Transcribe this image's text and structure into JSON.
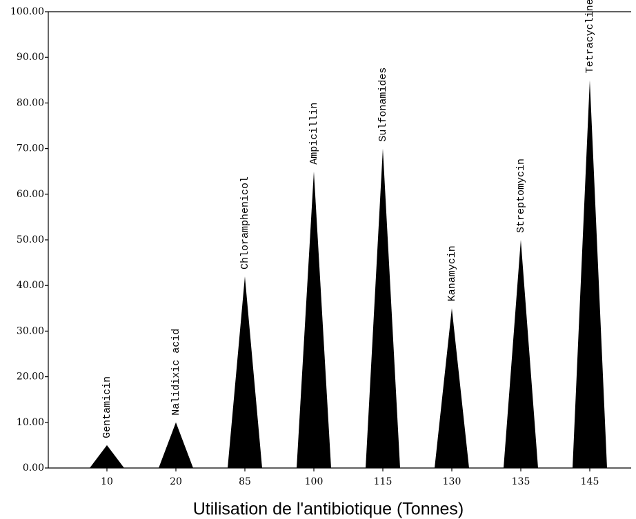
{
  "chart_data": {
    "type": "triangle-bar",
    "xlabel": "Utilisation de l'antibiotique (Tonnes)",
    "categories": [
      "10",
      "20",
      "85",
      "100",
      "115",
      "130",
      "135",
      "145"
    ],
    "labels": [
      "Gentamicin",
      "Nalidixic acid",
      "Chloramphenicol",
      "Ampicillin",
      "Sulfonamides",
      "Kanamycin",
      "Streptomycin",
      "Tetracycline"
    ],
    "values": [
      5,
      10,
      42,
      65,
      70,
      35,
      50,
      85
    ],
    "color": "#000000",
    "ylim": [
      0,
      100
    ],
    "yticks": [
      {
        "value": 0,
        "label": "0.00"
      },
      {
        "value": 10,
        "label": "10.00"
      },
      {
        "value": 20,
        "label": "20.00"
      },
      {
        "value": 30,
        "label": "30.00"
      },
      {
        "value": 40,
        "label": "40.00"
      },
      {
        "value": 50,
        "label": "50.00"
      },
      {
        "value": 60,
        "label": "60.00"
      },
      {
        "value": 70,
        "label": "70.00"
      },
      {
        "value": 80,
        "label": "80.00"
      },
      {
        "value": 90,
        "label": "90.00"
      },
      {
        "value": 100,
        "label": "100.00"
      }
    ]
  }
}
